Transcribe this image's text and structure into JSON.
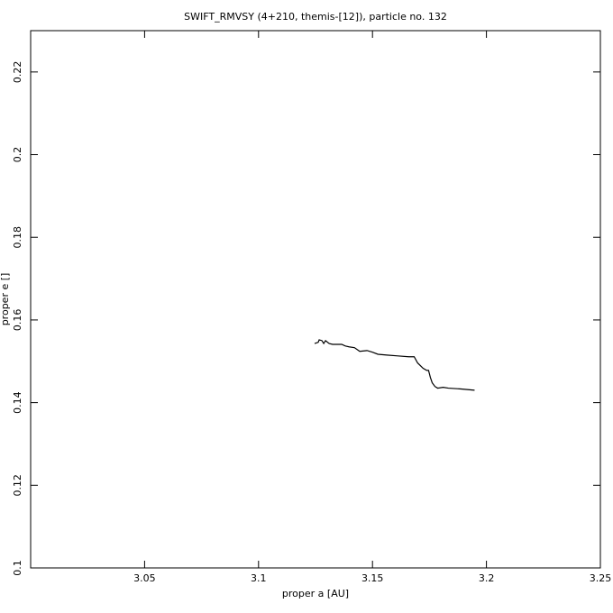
{
  "chart_data": {
    "type": "line",
    "title": "SWIFT_RMVSY (4+210, themis-[12]), particle no. 132",
    "x_label": "proper a [AU]",
    "y_label": "proper e []",
    "xlim": [
      3.0,
      3.25
    ],
    "xticks": [
      3.05,
      3.1,
      3.15,
      3.2,
      3.25
    ],
    "ylim": [
      0.1,
      0.23
    ],
    "yticks": [
      0.1,
      0.12,
      0.14,
      0.16,
      0.18,
      0.2,
      0.22
    ],
    "color": "#000000",
    "x": [
      3.1246,
      3.1262,
      3.1266,
      3.1278,
      3.1286,
      3.1294,
      3.131,
      3.1325,
      3.1365,
      3.1381,
      3.1397,
      3.1421,
      3.1444,
      3.1476,
      3.15,
      3.1524,
      3.1563,
      3.1611,
      3.1659,
      3.1683,
      3.1698,
      3.1722,
      3.1738,
      3.1746,
      3.1754,
      3.1762,
      3.1774,
      3.1786,
      3.181,
      3.1833,
      3.1889,
      3.1948
    ],
    "values": [
      0.1543,
      0.1546,
      0.1552,
      0.155,
      0.1543,
      0.155,
      0.1543,
      0.1541,
      0.1541,
      0.1537,
      0.1535,
      0.1533,
      0.1524,
      0.1526,
      0.1522,
      0.1517,
      0.1515,
      0.1513,
      0.1511,
      0.1511,
      0.1496,
      0.1483,
      0.1478,
      0.1478,
      0.1461,
      0.1448,
      0.1439,
      0.1435,
      0.1437,
      0.1435,
      0.1433,
      0.143
    ]
  }
}
